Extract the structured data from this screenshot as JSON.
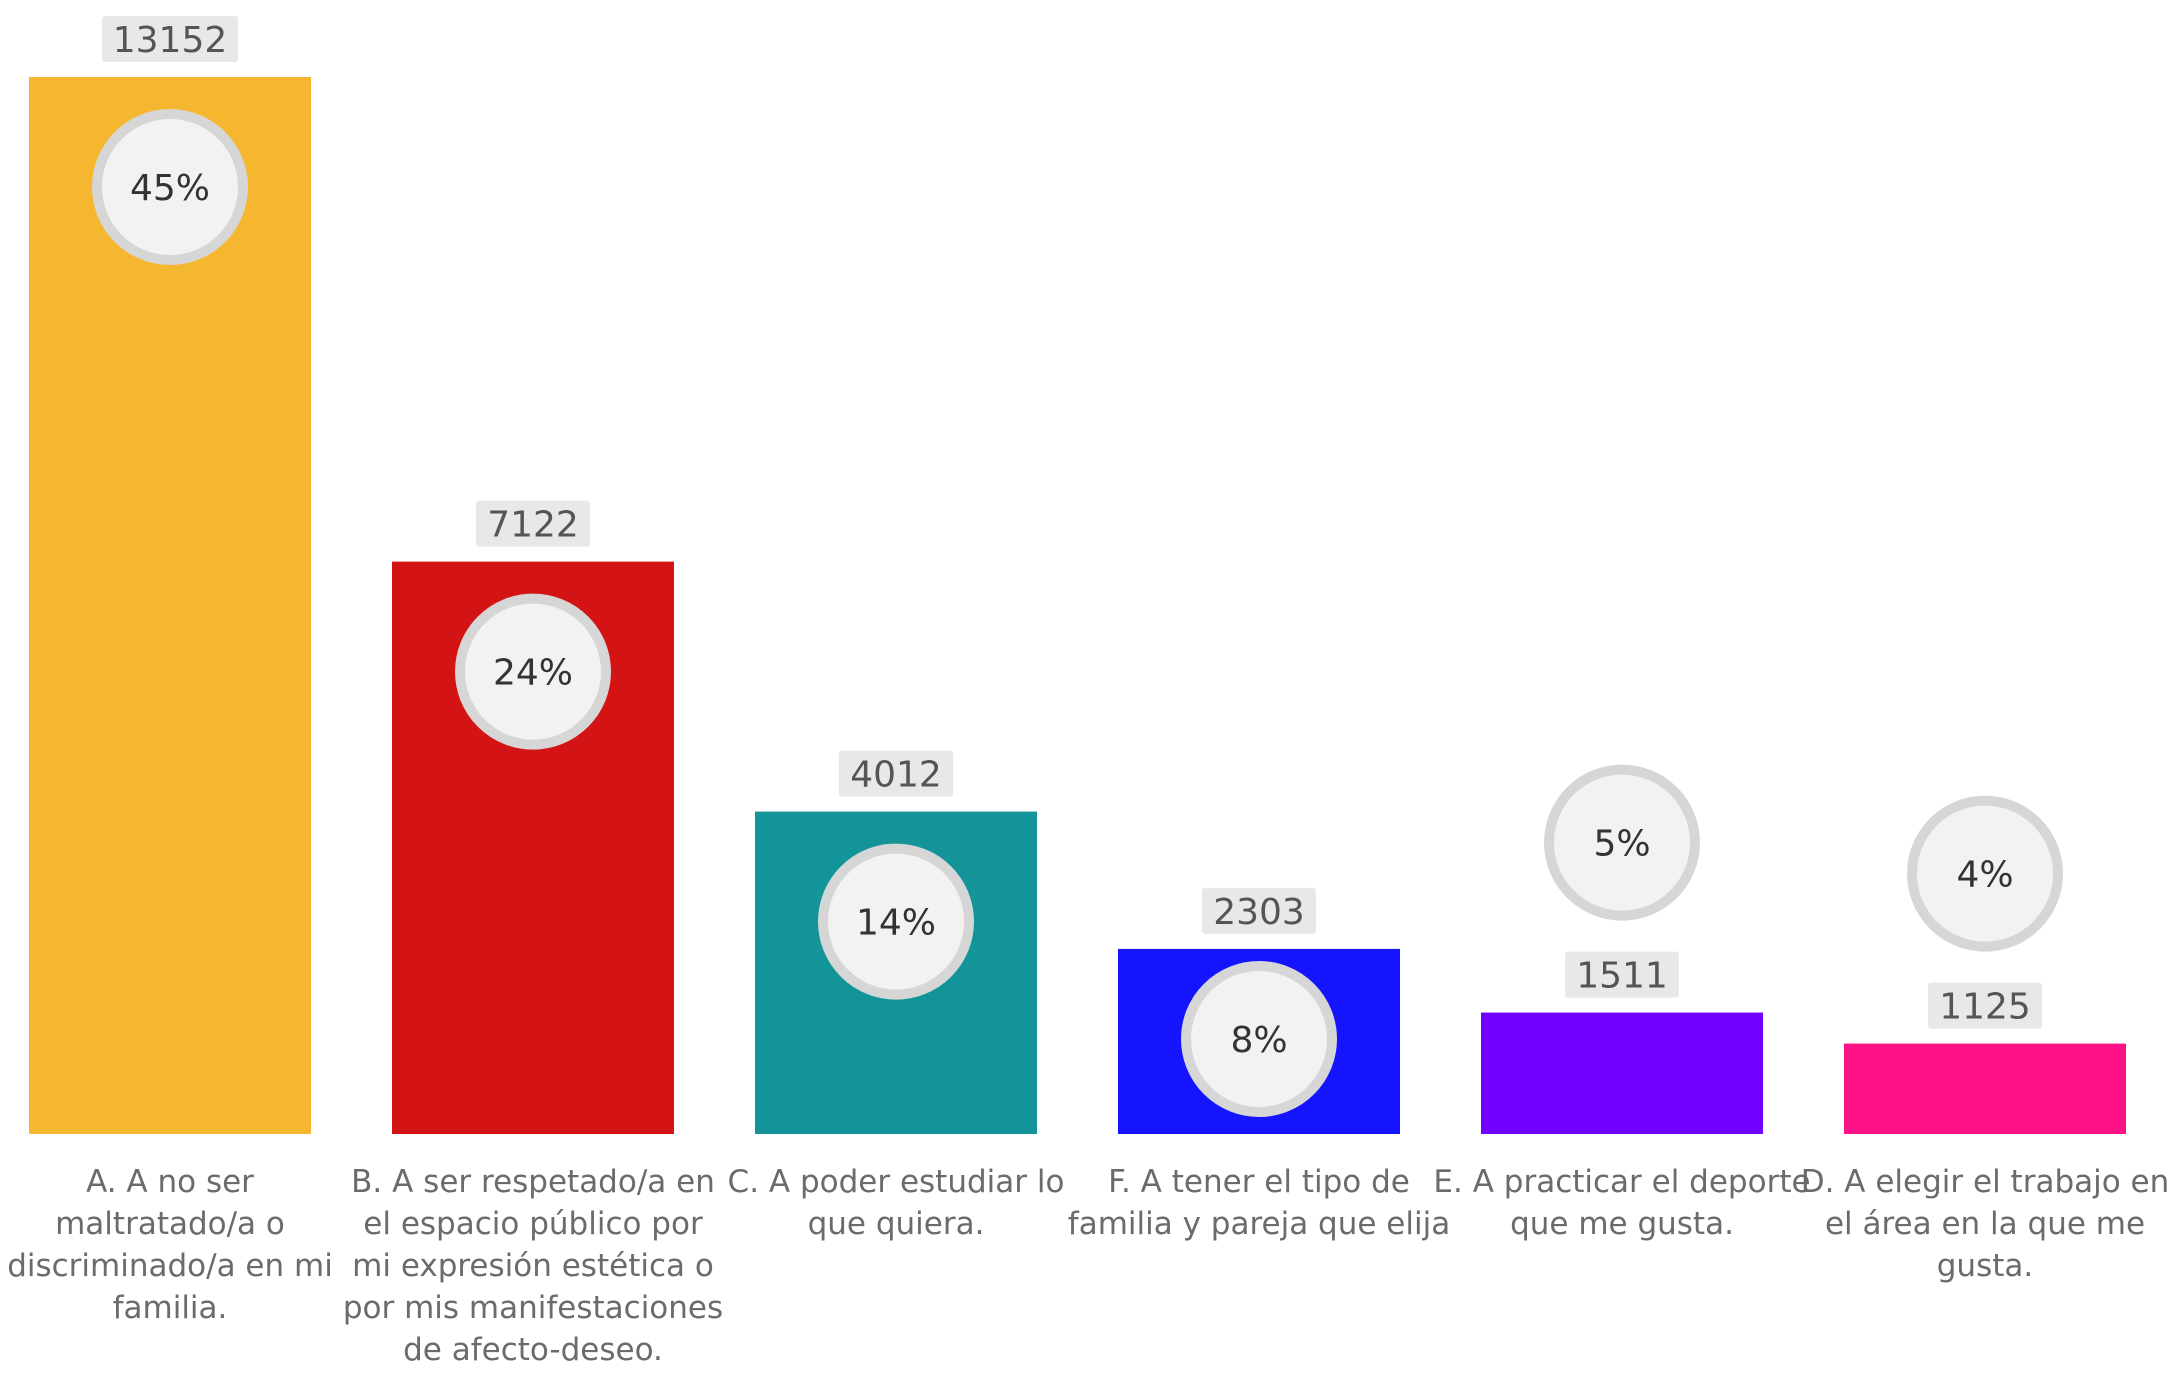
{
  "chart_data": {
    "type": "bar",
    "categories": [
      [
        "A. A no ser",
        "maltratado/a o",
        "discriminado/a en mi",
        "familia."
      ],
      [
        "B. A ser respetado/a en",
        "el espacio público por",
        "mi expresión estética o",
        "por mis manifestaciones",
        "de afecto-deseo."
      ],
      [
        "C. A poder estudiar lo",
        "que quiera."
      ],
      [
        "F. A tener el tipo de",
        "familia y pareja que elija"
      ],
      [
        "E. A practicar el deporte",
        "que me gusta."
      ],
      [
        "D. A elegir el trabajo en",
        "el área en la que me",
        "gusta."
      ]
    ],
    "values": [
      13152,
      7122,
      4012,
      2303,
      1511,
      1125
    ],
    "percent_labels": [
      "45%",
      "24%",
      "14%",
      "8%",
      "5%",
      "4%"
    ],
    "colors": [
      "#F5B630",
      "#D41414",
      "#139499",
      "#1414FF",
      "#7200FF",
      "#FF1288"
    ],
    "ylim": [
      0,
      13152
    ],
    "grid": false,
    "legend": "none",
    "title": "",
    "xlabel": "",
    "ylabel": ""
  }
}
